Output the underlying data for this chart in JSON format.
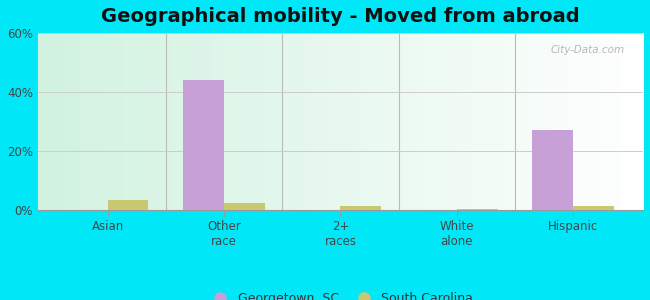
{
  "title": "Geographical mobility - Moved from abroad",
  "categories": [
    "Asian",
    "Other\nrace",
    "2+\nraces",
    "White\nalone",
    "Hispanic"
  ],
  "georgetown_values": [
    0.0,
    44.0,
    0.0,
    0.0,
    27.0
  ],
  "sc_values": [
    3.5,
    2.5,
    1.5,
    0.4,
    1.5
  ],
  "georgetown_color": "#c8a0d8",
  "sc_color": "#c8c870",
  "ylim": [
    0,
    60
  ],
  "yticks": [
    0,
    20,
    40,
    60
  ],
  "ytick_labels": [
    "0%",
    "20%",
    "40%",
    "60%"
  ],
  "bg_gradient_colors": [
    "#b8e8d8",
    "#eaf5ee",
    "#f0f8f0",
    "#ffffff"
  ],
  "outer_background": "#00e8f8",
  "bar_width": 0.35,
  "title_fontsize": 14,
  "legend_fontsize": 9,
  "tick_fontsize": 8.5,
  "watermark": "City-Data.com"
}
